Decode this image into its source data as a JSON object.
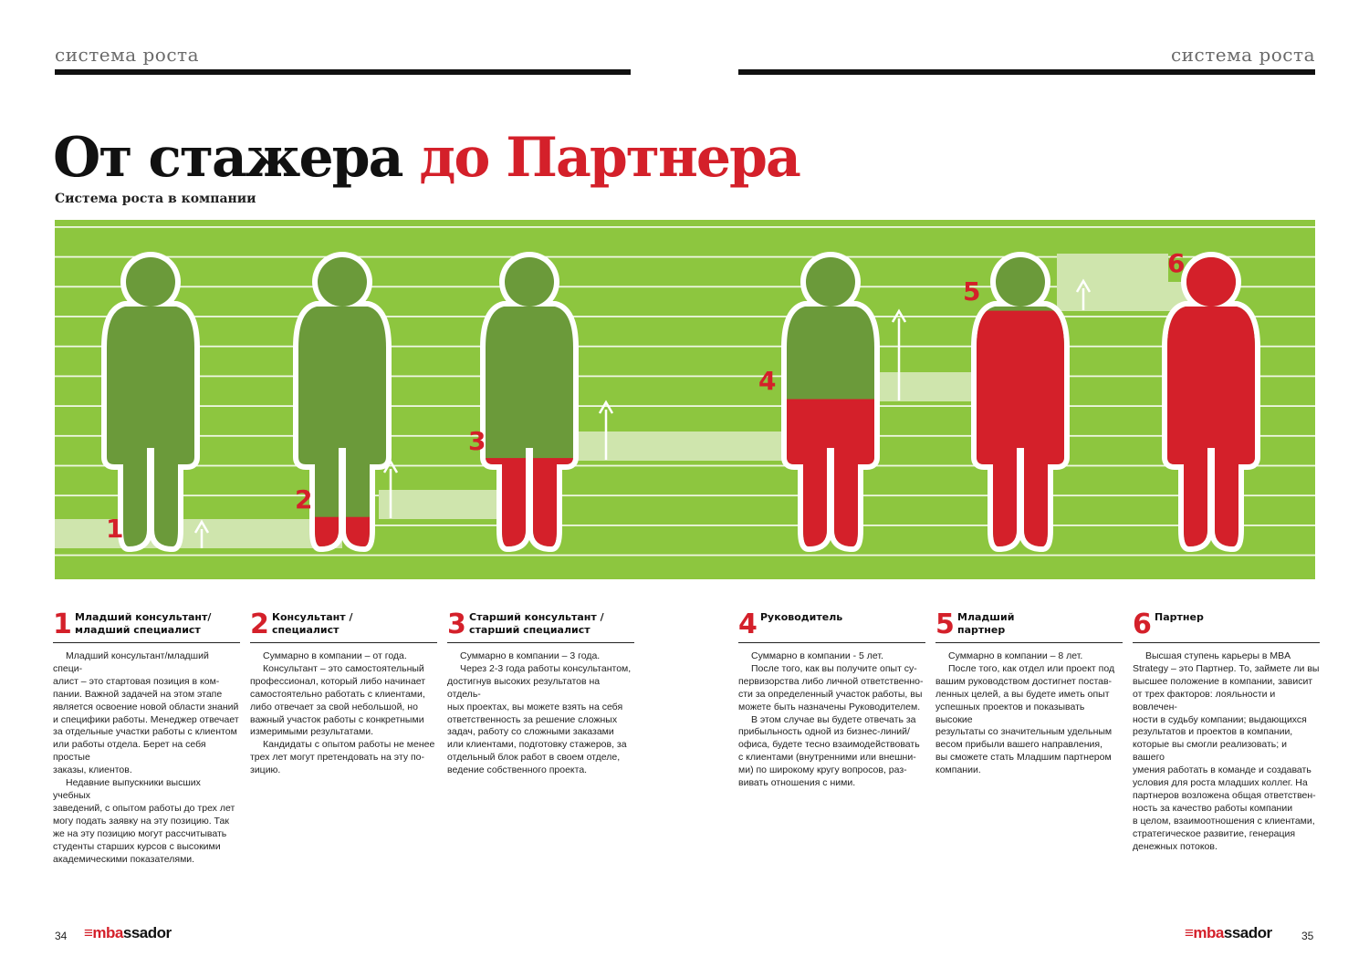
{
  "header": {
    "left_label": "система роста",
    "right_label": "система роста"
  },
  "title": {
    "part1": "От стажера",
    "part2": " до Партнера",
    "subtitle": "Система роста в компании"
  },
  "infographic": {
    "colors": {
      "background": "#8dc63f",
      "green_figure": "#6b9a3a",
      "red_figure": "#d4202a",
      "step_band": "#cfe5ad",
      "label": "#d4202a"
    },
    "levels": [
      {
        "label": "1",
        "red_fill": 0.0
      },
      {
        "label": "2",
        "red_fill": 0.1
      },
      {
        "label": "3",
        "red_fill": 0.3
      },
      {
        "label": "4",
        "red_fill": 0.5
      },
      {
        "label": "5",
        "red_fill": 0.8
      },
      {
        "label": "6",
        "red_fill": 1.0
      }
    ]
  },
  "steps": [
    {
      "num": "1",
      "title": [
        "Младший консультант/",
        "младший специалист"
      ],
      "paragraphs": [
        [
          "Младший консультант/младший специ-",
          "алист – это стартовая позиция в ком-",
          "пании. Важной задачей на этом этапе",
          "является освоение новой области знаний",
          "и специфики работы. Менеджер отвечает",
          "за отдельные участки работы с клиентом",
          "или работы отдела. Берет на себя простые",
          "заказы, клиентов."
        ],
        [
          "Недавние выпускники высших учебных",
          "заведений, с опытом работы до трех лет",
          "могу подать заявку на эту позицию. Так",
          "же на эту позицию могут рассчитывать",
          "студенты старших курсов с высокими",
          "академическими показателями."
        ]
      ]
    },
    {
      "num": "2",
      "title": [
        "Консультант /",
        "специалист"
      ],
      "paragraphs": [
        [
          "Суммарно в компании – от года."
        ],
        [
          "Консультант – это самостоятельный",
          "профессионал, который либо начинает",
          "самостоятельно работать с клиентами,",
          "либо отвечает за свой небольшой, но",
          "важный участок работы с конкретными",
          "измеримыми результатами."
        ],
        [
          "Кандидаты с опытом работы не менее",
          "трех лет могут претендовать на эту по-",
          "зицию."
        ]
      ]
    },
    {
      "num": "3",
      "title": [
        "Старший консультант /",
        "старший специалист"
      ],
      "paragraphs": [
        [
          "Суммарно в компании – 3 года."
        ],
        [
          "Через 2-3 года работы консультантом,",
          "достигнув высоких результатов на отдель-",
          "ных проектах, вы можете взять на себя",
          "ответственность за решение сложных",
          "задач, работу со сложными заказами",
          "или клиентами, подготовку стажеров, за",
          "отдельный блок работ в своем отделе,",
          "ведение собственного проекта."
        ]
      ]
    },
    {
      "num": "4",
      "title": [
        "Руководитель"
      ],
      "paragraphs": [
        [
          "Суммарно в компании - 5 лет."
        ],
        [
          "После того, как вы получите опыт су-",
          "первизорства либо личной ответственно-",
          "сти за определенный участок работы, вы",
          "можете быть назначены Руководителем."
        ],
        [
          "В этом случае вы будете отвечать за",
          "прибыльность одной из бизнес-линий/",
          "офиса, будете тесно взаимодействовать",
          "с клиентами (внутренними или внешни-",
          "ми) по широкому кругу вопросов, раз-",
          "вивать отношения с ними."
        ]
      ]
    },
    {
      "num": "5",
      "title": [
        "Младший",
        "партнер"
      ],
      "paragraphs": [
        [
          "Суммарно в компании – 8 лет."
        ],
        [
          "После того, как отдел или проект под",
          "вашим руководством достигнет постав-",
          "ленных целей, а вы будете иметь опыт",
          "успешных проектов и показывать высокие",
          "результаты со значительным удельным",
          "весом прибыли вашего направления,",
          "вы сможете стать Младшим партнером",
          "компании."
        ]
      ]
    },
    {
      "num": "6",
      "title": [
        "Партнер"
      ],
      "paragraphs": [
        [
          "Высшая ступень карьеры в MBA",
          "Strategy – это Партнер. То, займете ли вы",
          "высшее положение в компании, зависит",
          "от трех факторов: лояльности и вовлечен-",
          "ности в судьбу компании; выдающихся",
          "результатов и проектов в компании,",
          "которые вы смогли реализовать; и вашего",
          "умения работать в команде и создавать",
          "условия для роста младших коллег. На",
          "партнеров возложена общая ответствен-",
          "ность за качество работы компании",
          "в целом, взаимоотношения с клиентами,",
          "стратегическое развитие, генерация",
          "денежных потоков."
        ]
      ]
    }
  ],
  "footer": {
    "left_page": "34",
    "right_page": "35",
    "logo_mark": "≡",
    "logo_red": "mba",
    "logo_rest": "ssador"
  }
}
